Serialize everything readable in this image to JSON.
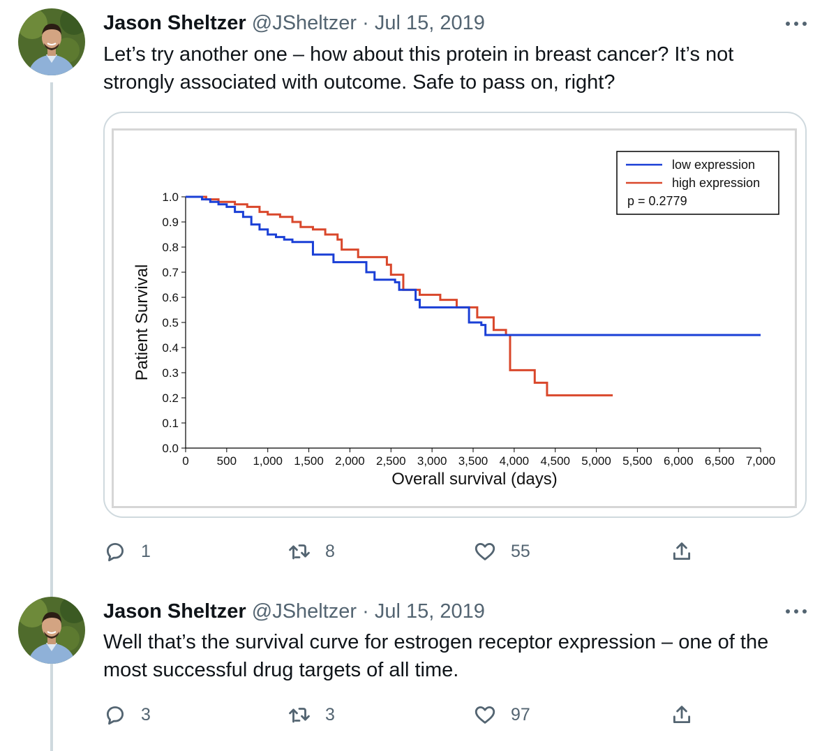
{
  "tweets": [
    {
      "author_name": "Jason Sheltzer",
      "handle": "@JSheltzer",
      "separator": "·",
      "date": "Jul 15, 2019",
      "text": "Let’s try another one – how about this protein in breast cancer? It’s not strongly associated with outcome. Safe to pass on, right?",
      "replies": "1",
      "retweets": "8",
      "likes": "55"
    },
    {
      "author_name": "Jason Sheltzer",
      "handle": "@JSheltzer",
      "separator": "·",
      "date": "Jul 15, 2019",
      "text": "Well that’s the survival curve for estrogen receptor expression – one of the most successful drug targets of all time.",
      "replies": "3",
      "retweets": "3",
      "likes": "97"
    }
  ],
  "icons": [
    "avatar",
    "more-icon",
    "reply-icon",
    "retweet-icon",
    "like-icon",
    "share-icon"
  ],
  "colors": {
    "low_expression": "#1a3fd6",
    "high_expression": "#d9472b",
    "secondary_text": "#536471",
    "thread_line": "#cfd9de"
  },
  "chart_data": {
    "type": "line",
    "subtype": "kaplan-meier step",
    "title": "",
    "xlabel": "Overall survival (days)",
    "ylabel": "Patient Survival",
    "xlim": [
      0,
      7000
    ],
    "ylim": [
      0,
      1.0
    ],
    "x_ticks": [
      0,
      500,
      1000,
      1500,
      2000,
      2500,
      3000,
      3500,
      4000,
      4500,
      5000,
      5500,
      6000,
      6500,
      7000
    ],
    "x_tick_labels": [
      "0",
      "500",
      "1,000",
      "1,500",
      "2,000",
      "2,500",
      "3,000",
      "3,500",
      "4,000",
      "4,500",
      "5,000",
      "5,500",
      "6,000",
      "6,500",
      "7,000"
    ],
    "y_ticks": [
      0,
      0.1,
      0.2,
      0.3,
      0.4,
      0.5,
      0.6,
      0.7,
      0.8,
      0.9,
      1.0
    ],
    "y_tick_labels": [
      "0.0",
      "0.1",
      "0.2",
      "0.3",
      "0.4",
      "0.5",
      "0.6",
      "0.7",
      "0.8",
      "0.9",
      "1.0"
    ],
    "grid": false,
    "legend_position": "top-right",
    "annotation": "p = 0.2779",
    "series": [
      {
        "name": "low expression",
        "color": "#1a3fd6",
        "x": [
          0,
          200,
          300,
          400,
          500,
          600,
          700,
          800,
          900,
          1000,
          1100,
          1200,
          1300,
          1500,
          1550,
          1750,
          1800,
          2100,
          2200,
          2300,
          2550,
          2600,
          2800,
          2850,
          3400,
          3450,
          3600,
          3650,
          7000
        ],
        "y": [
          1.0,
          0.99,
          0.98,
          0.97,
          0.96,
          0.94,
          0.92,
          0.89,
          0.87,
          0.85,
          0.84,
          0.83,
          0.82,
          0.82,
          0.77,
          0.77,
          0.74,
          0.74,
          0.7,
          0.67,
          0.66,
          0.63,
          0.59,
          0.56,
          0.56,
          0.5,
          0.49,
          0.45,
          0.45
        ]
      },
      {
        "name": "high expression",
        "color": "#d9472b",
        "x": [
          0,
          250,
          400,
          600,
          750,
          900,
          1000,
          1150,
          1300,
          1400,
          1550,
          1700,
          1850,
          1900,
          2100,
          2400,
          2450,
          2500,
          2650,
          2850,
          3100,
          3300,
          3500,
          3550,
          3750,
          3900,
          3950,
          4250,
          4400,
          5200
        ],
        "y": [
          1.0,
          0.99,
          0.98,
          0.97,
          0.96,
          0.94,
          0.93,
          0.92,
          0.9,
          0.88,
          0.87,
          0.85,
          0.83,
          0.79,
          0.76,
          0.76,
          0.73,
          0.69,
          0.63,
          0.61,
          0.59,
          0.56,
          0.56,
          0.52,
          0.47,
          0.45,
          0.31,
          0.26,
          0.21,
          0.21
        ]
      }
    ]
  }
}
